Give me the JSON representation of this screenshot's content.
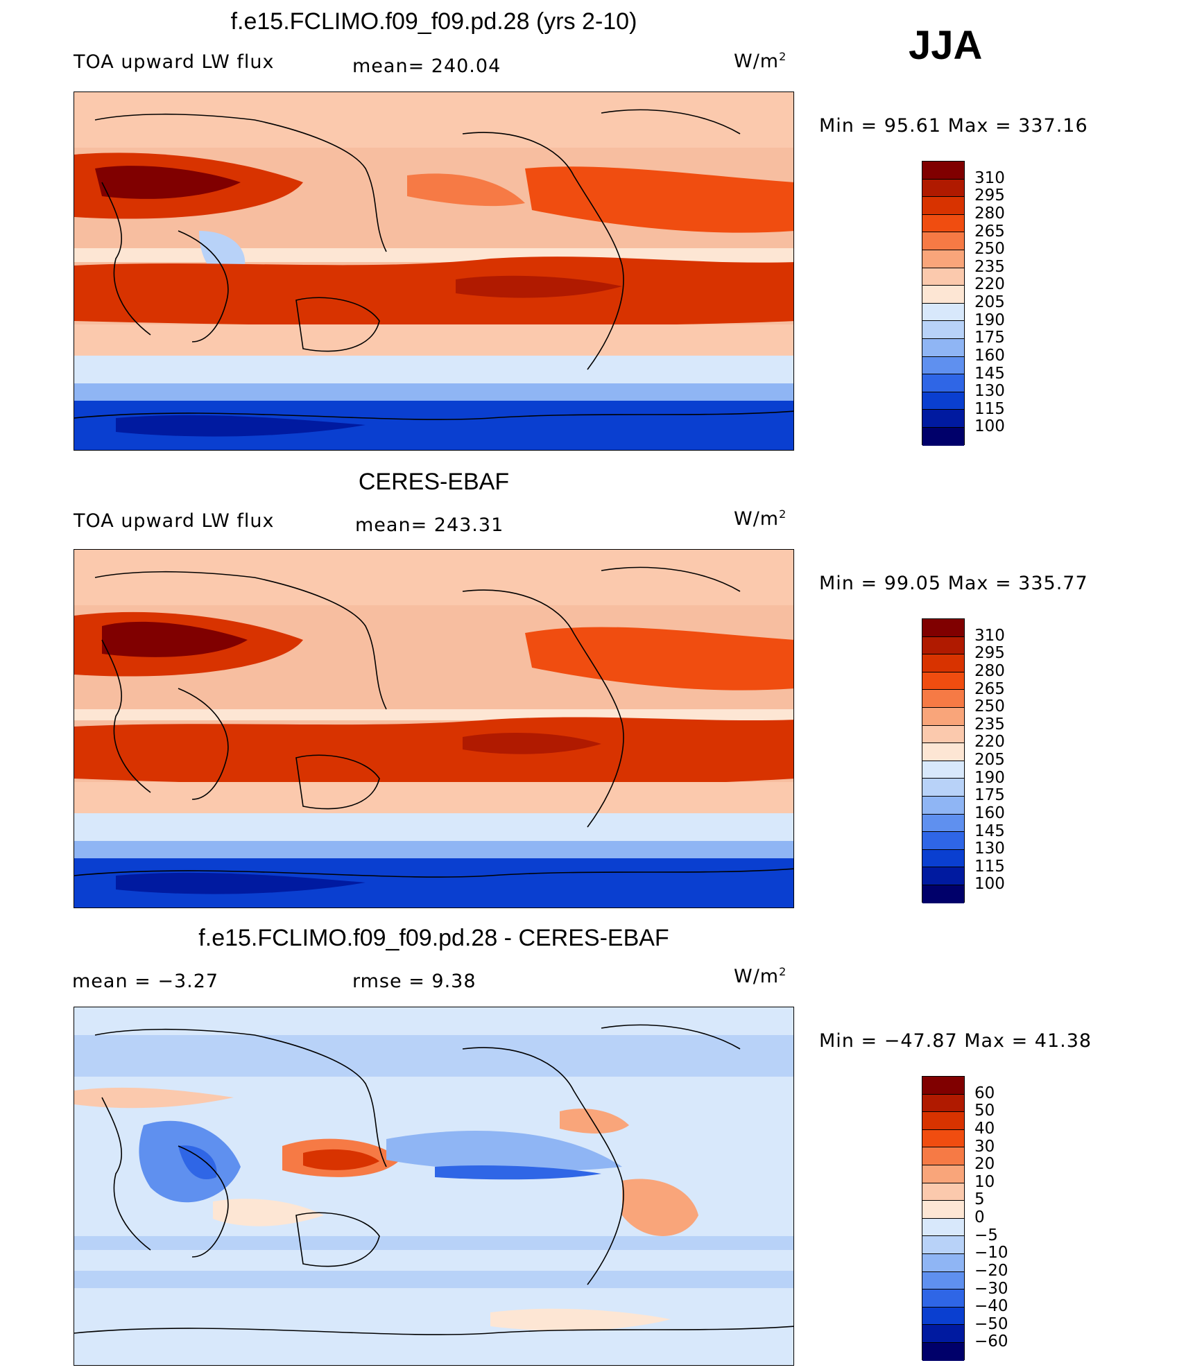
{
  "season": "JJA",
  "panels": [
    {
      "title": "f.e15.FCLIMO.f09_f09.pd.28 (yrs 2-10)",
      "left_label": "TOA upward LW flux",
      "mid_label": "mean= 240.04",
      "units_base": "W/m",
      "units_exp": "2",
      "minmax": "Min =   95.61  Max  =  337.16",
      "levels": [
        "310",
        "295",
        "280",
        "265",
        "250",
        "235",
        "220",
        "205",
        "190",
        "175",
        "160",
        "145",
        "130",
        "115",
        "100"
      ]
    },
    {
      "title": "CERES-EBAF",
      "left_label": "TOA upward LW flux",
      "mid_label": "mean= 243.31",
      "units_base": "W/m",
      "units_exp": "2",
      "minmax": "Min =   99.05  Max  =  335.77",
      "levels": [
        "310",
        "295",
        "280",
        "265",
        "250",
        "235",
        "220",
        "205",
        "190",
        "175",
        "160",
        "145",
        "130",
        "115",
        "100"
      ]
    },
    {
      "title": "f.e15.FCLIMO.f09_f09.pd.28 - CERES-EBAF",
      "left_label": "mean  =    −3.27",
      "mid_label": "rmse  =     9.38",
      "units_base": "W/m",
      "units_exp": "2",
      "minmax": "Min  = −47.87  Max  =   41.38",
      "levels": [
        "60",
        "50",
        "40",
        "30",
        "20",
        "10",
        "5",
        "0",
        "−5",
        "−10",
        "−20",
        "−30",
        "−40",
        "−50",
        "−60"
      ]
    }
  ],
  "colors": {
    "flux_scale": [
      "#800000",
      "#b01a00",
      "#d83300",
      "#f04d10",
      "#f67a45",
      "#f9a57a",
      "#fbc9ad",
      "#fde6d4",
      "#d8e8fb",
      "#b8d2f8",
      "#8fb5f4",
      "#5f90ef",
      "#2f66e6",
      "#0a3fd0",
      "#001aa0",
      "#00006a"
    ],
    "diff_scale": [
      "#800000",
      "#b01a00",
      "#d83300",
      "#f04d10",
      "#f67a45",
      "#f9a57a",
      "#fbc9ad",
      "#fde6d4",
      "#d8e8fb",
      "#b8d2f8",
      "#8fb5f4",
      "#5f90ef",
      "#2f66e6",
      "#0a3fd0",
      "#001aa0",
      "#00006a"
    ]
  }
}
